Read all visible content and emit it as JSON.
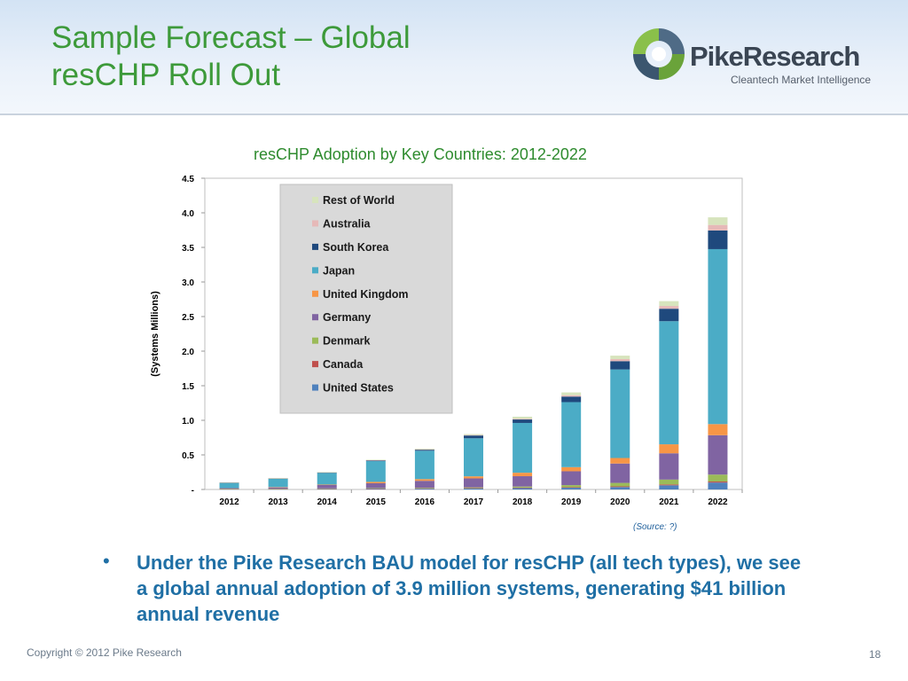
{
  "slide": {
    "title_line1": "Sample Forecast – Global",
    "title_line2": "resCHP Roll Out",
    "logo": {
      "brand_part1": "Pike",
      "brand_part2": "Research",
      "tagline": "Cleantech Market Intelligence"
    },
    "bullet": "Under the Pike Research BAU model for resCHP (all tech types), we see a global annual adoption of 3.9 million systems, generating $41 billion annual revenue",
    "copyright": "Copyright © 2012 Pike Research",
    "page_number": "18",
    "source": "(Source: ?)"
  },
  "chart_data": {
    "type": "bar",
    "stacked": true,
    "title": "resCHP Adoption by Key Countries: 2012-2022",
    "ylabel": "(Systems Millions)",
    "xlabel": "",
    "ylim": [
      0,
      4.5
    ],
    "yticks": [
      0,
      0.5,
      1.0,
      1.5,
      2.0,
      2.5,
      3.0,
      3.5,
      4.0,
      4.5
    ],
    "ytick_labels": [
      "-",
      "0.5",
      "1.0",
      "1.5",
      "2.0",
      "2.5",
      "3.0",
      "3.5",
      "4.0",
      "4.5"
    ],
    "grid": false,
    "legend_position": "top-left",
    "categories": [
      "2012",
      "2013",
      "2014",
      "2015",
      "2016",
      "2017",
      "2018",
      "2019",
      "2020",
      "2021",
      "2022"
    ],
    "series": [
      {
        "name": "United States",
        "color": "#4f81bd",
        "values": [
          0.005,
          0.005,
          0.008,
          0.01,
          0.012,
          0.015,
          0.02,
          0.025,
          0.035,
          0.06,
          0.1
        ]
      },
      {
        "name": "Canada",
        "color": "#c0504d",
        "values": [
          0.002,
          0.002,
          0.003,
          0.004,
          0.005,
          0.005,
          0.007,
          0.008,
          0.01,
          0.013,
          0.015
        ]
      },
      {
        "name": "Denmark",
        "color": "#9bbb59",
        "values": [
          0.003,
          0.003,
          0.005,
          0.006,
          0.008,
          0.01,
          0.015,
          0.03,
          0.05,
          0.07,
          0.1
        ]
      },
      {
        "name": "Germany",
        "color": "#8064a2",
        "values": [
          0.01,
          0.02,
          0.05,
          0.07,
          0.1,
          0.13,
          0.15,
          0.2,
          0.28,
          0.38,
          0.57
        ]
      },
      {
        "name": "United Kingdom",
        "color": "#f79646",
        "values": [
          0.0,
          0.005,
          0.005,
          0.02,
          0.025,
          0.03,
          0.05,
          0.06,
          0.08,
          0.13,
          0.16
        ]
      },
      {
        "name": "Japan",
        "color": "#4bacc6",
        "values": [
          0.075,
          0.12,
          0.17,
          0.3,
          0.41,
          0.55,
          0.72,
          0.94,
          1.28,
          1.78,
          2.53
        ]
      },
      {
        "name": "South Korea",
        "color": "#1f497d",
        "values": [
          0.005,
          0.005,
          0.005,
          0.01,
          0.015,
          0.04,
          0.05,
          0.08,
          0.12,
          0.18,
          0.27
        ]
      },
      {
        "name": "Australia",
        "color": "#e6b9b8",
        "values": [
          0.002,
          0.002,
          0.002,
          0.003,
          0.005,
          0.007,
          0.01,
          0.02,
          0.03,
          0.04,
          0.08
        ]
      },
      {
        "name": "Rest of World",
        "color": "#d7e4bd",
        "values": [
          0.003,
          0.003,
          0.004,
          0.007,
          0.01,
          0.013,
          0.03,
          0.04,
          0.05,
          0.07,
          0.11
        ]
      }
    ]
  }
}
